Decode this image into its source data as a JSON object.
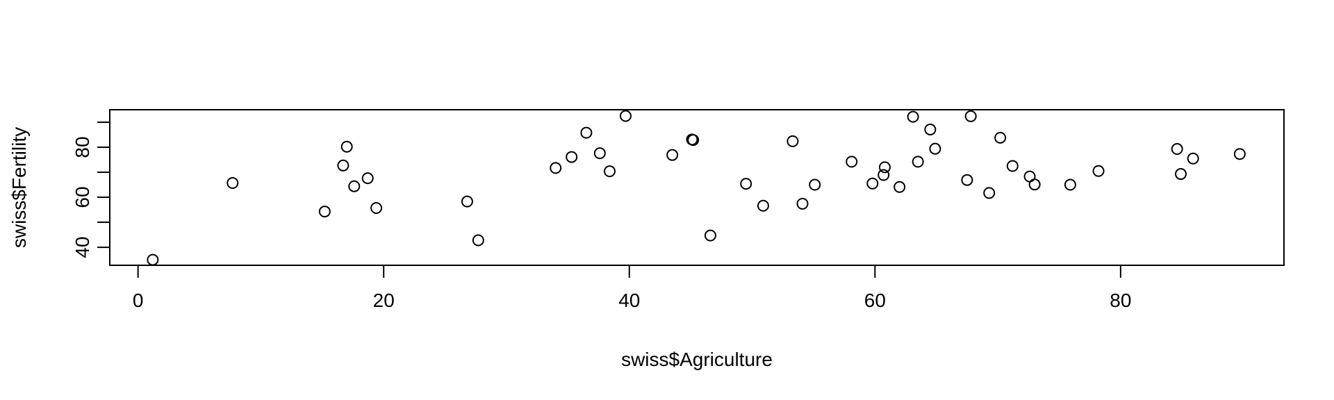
{
  "chart_data": {
    "type": "scatter",
    "title": "",
    "xlabel": "swiss$Agriculture",
    "ylabel": "swiss$Fertility",
    "xlim": [
      -2.3,
      93.3
    ],
    "ylim": [
      32.8,
      95.0
    ],
    "x_ticks": [
      0,
      20,
      40,
      60,
      80
    ],
    "y_ticks": [
      40,
      50,
      60,
      70,
      80,
      90
    ],
    "y_tick_labels": [
      "40",
      "",
      "60",
      "",
      "80",
      ""
    ],
    "x_tick_labels": [
      "0",
      "20",
      "40",
      "60",
      "80"
    ],
    "grid": false,
    "legend": "none",
    "points": [
      {
        "x": 17.0,
        "y": 80.2
      },
      {
        "x": 45.1,
        "y": 83.1
      },
      {
        "x": 39.7,
        "y": 92.5
      },
      {
        "x": 36.5,
        "y": 85.8
      },
      {
        "x": 43.5,
        "y": 76.9
      },
      {
        "x": 35.3,
        "y": 76.1
      },
      {
        "x": 70.2,
        "y": 83.8
      },
      {
        "x": 67.8,
        "y": 92.4
      },
      {
        "x": 53.3,
        "y": 82.4
      },
      {
        "x": 45.2,
        "y": 82.9
      },
      {
        "x": 64.5,
        "y": 87.1
      },
      {
        "x": 62.0,
        "y": 64.1
      },
      {
        "x": 67.5,
        "y": 66.9
      },
      {
        "x": 60.7,
        "y": 68.9
      },
      {
        "x": 69.3,
        "y": 61.7
      },
      {
        "x": 72.6,
        "y": 68.3
      },
      {
        "x": 34.0,
        "y": 71.7
      },
      {
        "x": 19.4,
        "y": 55.7
      },
      {
        "x": 15.2,
        "y": 54.3
      },
      {
        "x": 73.0,
        "y": 65.1
      },
      {
        "x": 59.8,
        "y": 65.5
      },
      {
        "x": 55.1,
        "y": 65.0
      },
      {
        "x": 50.9,
        "y": 56.6
      },
      {
        "x": 54.1,
        "y": 57.4
      },
      {
        "x": 71.2,
        "y": 72.5
      },
      {
        "x": 63.5,
        "y": 74.2
      },
      {
        "x": 60.8,
        "y": 72.0
      },
      {
        "x": 26.8,
        "y": 58.3
      },
      {
        "x": 49.5,
        "y": 65.4
      },
      {
        "x": 85.9,
        "y": 75.5
      },
      {
        "x": 84.9,
        "y": 69.3
      },
      {
        "x": 89.7,
        "y": 77.3
      },
      {
        "x": 78.2,
        "y": 70.5
      },
      {
        "x": 64.9,
        "y": 79.4
      },
      {
        "x": 75.9,
        "y": 65.0
      },
      {
        "x": 63.1,
        "y": 92.2
      },
      {
        "x": 84.6,
        "y": 79.3
      },
      {
        "x": 38.4,
        "y": 70.4
      },
      {
        "x": 7.7,
        "y": 65.7
      },
      {
        "x": 16.7,
        "y": 72.7
      },
      {
        "x": 17.6,
        "y": 64.4
      },
      {
        "x": 37.6,
        "y": 77.6
      },
      {
        "x": 18.7,
        "y": 67.6
      },
      {
        "x": 1.2,
        "y": 35.0
      },
      {
        "x": 46.6,
        "y": 44.7
      },
      {
        "x": 27.7,
        "y": 42.8
      },
      {
        "x": 58.1,
        "y": 74.2
      }
    ]
  }
}
